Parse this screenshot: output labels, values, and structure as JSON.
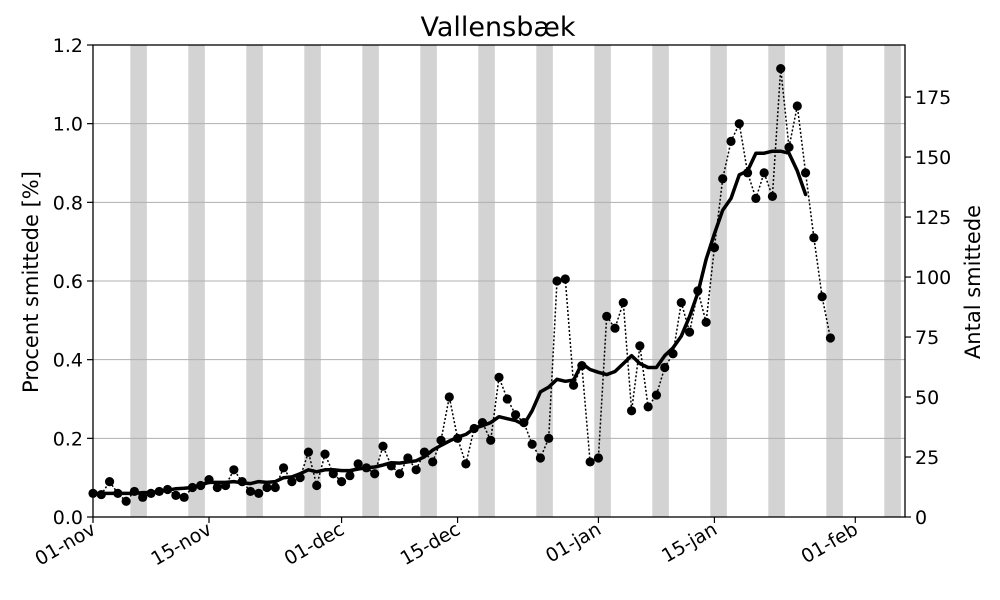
{
  "chart_data": {
    "type": "line",
    "title": "Vallensbæk",
    "ylabel": "Procent smittede [%]",
    "ylabel_right": "Antal smittede",
    "x_start_date": "2021-11-01",
    "xlim": [
      "2021-11-01",
      "2022-02-07"
    ],
    "ylim": [
      0,
      1.2
    ],
    "ylim_right": [
      0,
      196.7
    ],
    "y_ticks": [
      "0.0",
      "0.2",
      "0.4",
      "0.6",
      "0.8",
      "1.0",
      "1.2"
    ],
    "y_ticks_right": [
      "0",
      "25",
      "50",
      "75",
      "100",
      "125",
      "150",
      "175"
    ],
    "x_ticks": [
      {
        "date": "2021-11-01",
        "label": "01-nov"
      },
      {
        "date": "2021-11-15",
        "label": "15-nov"
      },
      {
        "date": "2021-12-01",
        "label": "01-dec"
      },
      {
        "date": "2021-12-15",
        "label": "15-dec"
      },
      {
        "date": "2022-01-01",
        "label": "01-jan"
      },
      {
        "date": "2022-01-15",
        "label": "15-jan"
      },
      {
        "date": "2022-02-01",
        "label": "01-feb"
      }
    ],
    "grid": "horizontal",
    "weekend_shading": {
      "color": "#d3d3d3",
      "weekends": [
        [
          "2021-11-06",
          "2021-11-07"
        ],
        [
          "2021-11-13",
          "2021-11-14"
        ],
        [
          "2021-11-20",
          "2021-11-21"
        ],
        [
          "2021-11-27",
          "2021-11-28"
        ],
        [
          "2021-12-04",
          "2021-12-05"
        ],
        [
          "2021-12-11",
          "2021-12-12"
        ],
        [
          "2021-12-18",
          "2021-12-19"
        ],
        [
          "2021-12-25",
          "2021-12-26"
        ],
        [
          "2022-01-01",
          "2022-01-02"
        ],
        [
          "2022-01-08",
          "2022-01-09"
        ],
        [
          "2022-01-15",
          "2022-01-16"
        ],
        [
          "2022-01-22",
          "2022-01-23"
        ],
        [
          "2022-01-29",
          "2022-01-30"
        ],
        [
          "2022-02-05",
          "2022-02-06"
        ]
      ]
    },
    "series": [
      {
        "style": "dotted line with markers",
        "color": "#000000",
        "values": [
          0.06,
          0.057,
          0.09,
          0.06,
          0.04,
          0.065,
          0.05,
          0.06,
          0.065,
          0.07,
          0.055,
          0.05,
          0.075,
          0.08,
          0.095,
          0.075,
          0.08,
          0.12,
          0.09,
          0.065,
          0.06,
          0.075,
          0.075,
          0.125,
          0.09,
          0.1,
          0.165,
          0.08,
          0.16,
          0.11,
          0.09,
          0.105,
          0.135,
          0.125,
          0.11,
          0.18,
          0.13,
          0.11,
          0.15,
          0.12,
          0.165,
          0.14,
          0.195,
          0.305,
          0.2,
          0.135,
          0.225,
          0.24,
          0.195,
          0.355,
          0.3,
          0.26,
          0.24,
          0.185,
          0.15,
          0.2,
          0.6,
          0.605,
          0.335,
          0.385,
          0.14,
          0.15,
          0.51,
          0.48,
          0.545,
          0.27,
          0.435,
          0.28,
          0.31,
          0.38,
          0.415,
          0.545,
          0.47,
          0.575,
          0.495,
          0.685,
          0.86,
          0.955,
          1.0,
          0.875,
          0.81,
          0.875,
          0.815,
          1.14,
          0.94,
          1.045,
          0.875,
          0.71,
          0.56,
          0.455
        ]
      },
      {
        "style": "thick solid line",
        "color": "#000000",
        "values": [
          0.06,
          0.06,
          0.06,
          0.06,
          0.06,
          0.06,
          0.062,
          0.062,
          0.065,
          0.068,
          0.072,
          0.073,
          0.075,
          0.082,
          0.088,
          0.088,
          0.088,
          0.09,
          0.087,
          0.085,
          0.09,
          0.088,
          0.09,
          0.1,
          0.102,
          0.11,
          0.12,
          0.115,
          0.12,
          0.12,
          0.118,
          0.118,
          0.122,
          0.125,
          0.127,
          0.132,
          0.138,
          0.137,
          0.14,
          0.143,
          0.153,
          0.17,
          0.182,
          0.193,
          0.203,
          0.21,
          0.225,
          0.232,
          0.24,
          0.255,
          0.25,
          0.245,
          0.235,
          0.27,
          0.318,
          0.33,
          0.35,
          0.345,
          0.348,
          0.39,
          0.375,
          0.368,
          0.362,
          0.37,
          0.39,
          0.41,
          0.39,
          0.38,
          0.38,
          0.41,
          0.43,
          0.46,
          0.51,
          0.57,
          0.655,
          0.72,
          0.78,
          0.81,
          0.87,
          0.88,
          0.925,
          0.925,
          0.93,
          0.93,
          0.925,
          0.88,
          0.82
        ]
      }
    ]
  }
}
